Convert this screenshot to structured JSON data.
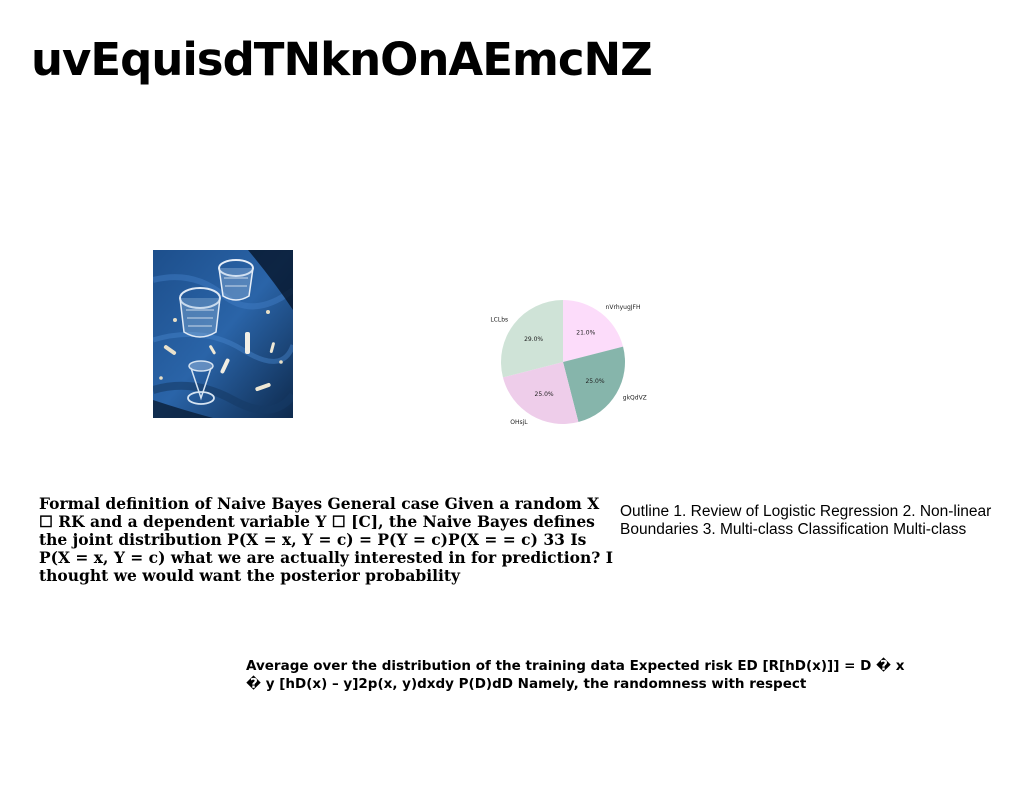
{
  "page": {
    "title": "uvEquisdTNknOnAEmcNZ"
  },
  "figure": {
    "image_alt": "glasses-on-blue-table-photo"
  },
  "chart_data": {
    "type": "pie",
    "title": "",
    "labels": [
      "nVrhyugJFH",
      "gkQdVZ",
      "OHsjL",
      "LCLbs"
    ],
    "values": [
      21.0,
      25.0,
      25.0,
      29.0
    ],
    "value_labels": [
      "21.0%",
      "25.0%",
      "25.0%",
      "29.0%"
    ],
    "colors": [
      "#fcdcfa",
      "#86b5ab",
      "#eecdea",
      "#cfe3d7"
    ],
    "start_angle_deg": 90,
    "direction": "clockwise"
  },
  "text": {
    "left_paragraph": "Formal definition of Naive Bayes General case Given a random X ☐ RK and a dependent variable Y ☐ [C], the Naive Bayes defines the joint distribution P(X = x, Y = c) = P(Y = c)P(X = = c) 33 Is P(X = x, Y = c) what we are actually interested in for prediction? I thought we would want the posterior probability",
    "right_paragraph": "Outline 1. Review of Logistic Regression 2. Non-linear Boundaries 3. Multi-class Classification Multi-class",
    "bottom_paragraph": "Average over the distribution of the training data Expected risk ED [R[hD(x)]] = D � x � y [hD(x) – y]2p(x, y)dxdy P(D)dD Namely, the randomness with respect"
  }
}
